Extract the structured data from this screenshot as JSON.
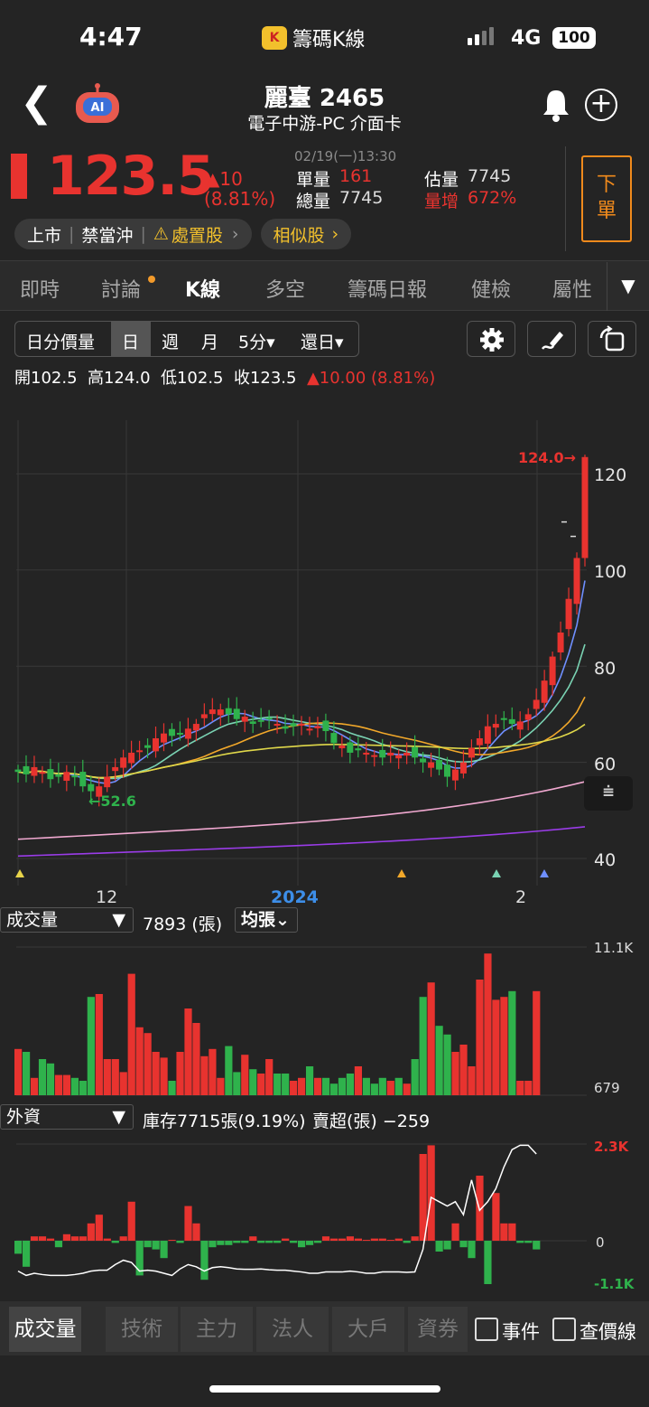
{
  "status": {
    "time": "4:47",
    "app": "籌碼K線",
    "network": "4G",
    "battery": "100"
  },
  "header": {
    "title": "麗臺 2465",
    "subtitle": "電子中游-PC 介面卡",
    "ai": "AI"
  },
  "quote": {
    "price": "123.5",
    "change": "▲10",
    "change_pct": "(8.81%)",
    "timestamp": "02/19(一)13:30",
    "single_vol_label": "單量",
    "single_vol": "161",
    "total_vol_label": "總量",
    "total_vol": "7745",
    "est_vol_label": "估量",
    "est_vol": "7745",
    "vol_inc_label": "量增",
    "vol_inc": "672%"
  },
  "tags": {
    "market": "上市",
    "daytrade": "禁當沖",
    "disposal": "處置股",
    "similar": "相似股"
  },
  "sell_button": [
    "下",
    "單"
  ],
  "tabs": [
    "即時",
    "討論",
    "K線",
    "多空",
    "籌碼日報",
    "健檢",
    "屬性"
  ],
  "periods": [
    "日分價量",
    "日",
    "週",
    "月",
    "5分▾",
    "還日▾"
  ],
  "ohlc": {
    "open_label": "開",
    "open": "102.5",
    "high_label": "高",
    "high": "124.0",
    "low_label": "低",
    "low": "102.5",
    "close_label": "收",
    "close": "123.5",
    "change": "▲10.00 (8.81%)"
  },
  "price_axis": [
    "120",
    "100",
    "80",
    "60",
    "40"
  ],
  "price_annotations": {
    "high": "124.0→",
    "low": "←52.6"
  },
  "time_axis": [
    "12",
    "2024",
    "2"
  ],
  "volume": {
    "selector": "成交量",
    "value": "7893 (張)",
    "avg_button": "均張",
    "axis_max": "11.1K",
    "axis_min": "679"
  },
  "foreign": {
    "selector": "外資",
    "inventory": "庫存7715張(9.19%)",
    "net": "賣超(張) −259",
    "axis_max": "2.3K",
    "axis_zero": "0",
    "axis_min": "-1.1K"
  },
  "bottom_tabs": [
    "成交量",
    "技術",
    "主力",
    "法人",
    "大戶",
    "資券"
  ],
  "bottom_checks": [
    "事件",
    "查價線"
  ],
  "colors": {
    "up": "#e8332f",
    "down": "#2fb24c",
    "accent": "#f08a1c",
    "background": "#242424"
  },
  "chart_data": {
    "type": "candlestick",
    "price_ylim": [
      40,
      125
    ],
    "last_candle": {
      "open": 102.5,
      "high": 124.0,
      "low": 102.5,
      "close": 123.5
    },
    "annotated_high": 124.0,
    "annotated_low": 52.6,
    "volume_range": [
      679,
      11100
    ],
    "current_volume": 7893,
    "foreign_range": [
      -1100,
      2300
    ],
    "foreign_net_today": -259
  }
}
